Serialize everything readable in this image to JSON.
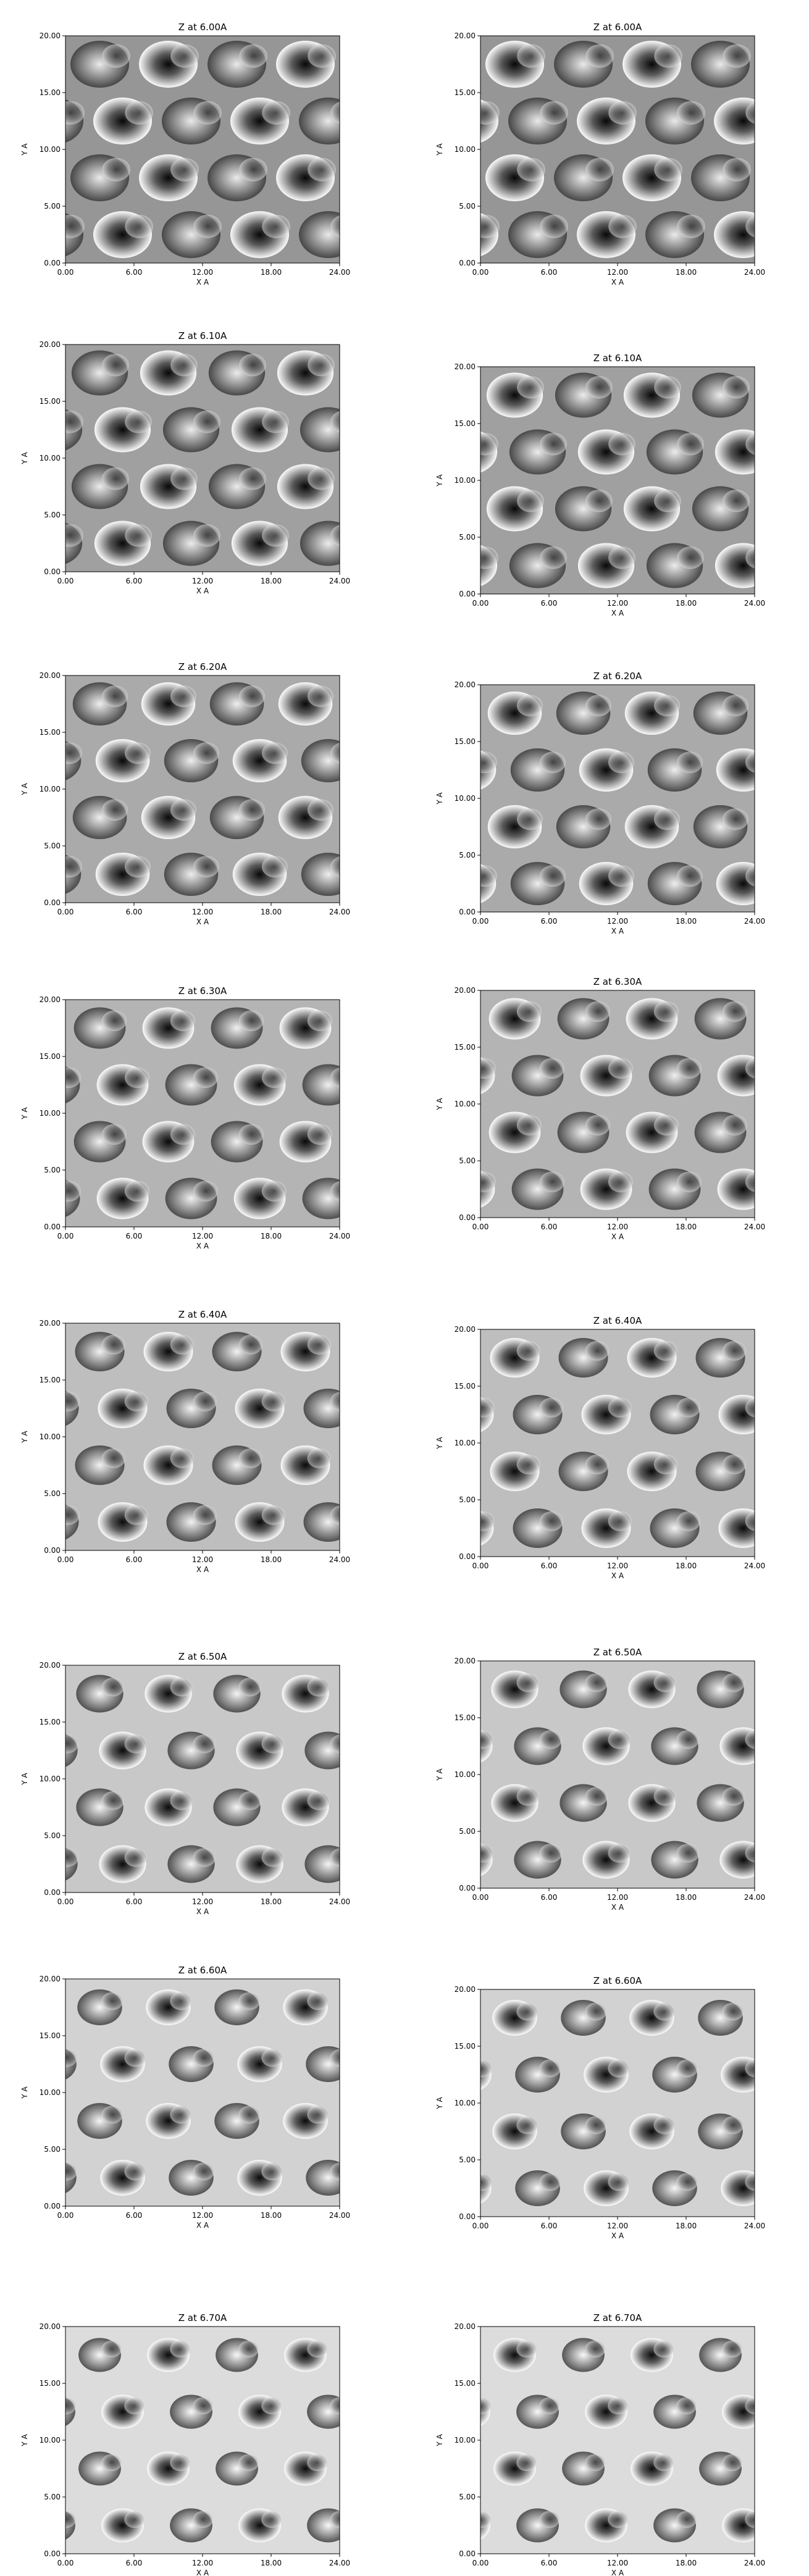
{
  "chart_data": [
    {
      "type": "heatmap",
      "title": "Z at 6.00A",
      "xlabel": "X A",
      "ylabel": "Y A",
      "xlim": [
        0,
        24
      ],
      "ylim": [
        0,
        20
      ],
      "xticks": [
        "0.00",
        "6.00",
        "12.00",
        "18.00",
        "24.00"
      ],
      "yticks": [
        "0.00",
        "5.00",
        "10.00",
        "15.00",
        "20.00"
      ],
      "colormap": "gray"
    },
    {
      "type": "heatmap",
      "title": "Z at 6.00A",
      "xlabel": "X A",
      "ylabel": "Y A",
      "xlim": [
        0,
        24
      ],
      "ylim": [
        0,
        20
      ],
      "xticks": [
        "0.00",
        "6.00",
        "12.00",
        "18.00",
        "24.00"
      ],
      "yticks": [
        "0.00",
        "5.00",
        "10.00",
        "15.00",
        "20.00"
      ],
      "colormap": "gray"
    },
    {
      "type": "heatmap",
      "title": "Z at 6.10A",
      "xlabel": "X A",
      "ylabel": "Y A",
      "xlim": [
        0,
        24
      ],
      "ylim": [
        0,
        20
      ],
      "xticks": [
        "0.00",
        "6.00",
        "12.00",
        "18.00",
        "24.00"
      ],
      "yticks": [
        "0.00",
        "5.00",
        "10.00",
        "15.00",
        "20.00"
      ],
      "colormap": "gray"
    },
    {
      "type": "heatmap",
      "title": "Z at 6.10A",
      "xlabel": "X A",
      "ylabel": "Y A",
      "xlim": [
        0,
        24
      ],
      "ylim": [
        0,
        20
      ],
      "xticks": [
        "0.00",
        "6.00",
        "12.00",
        "18.00",
        "24.00"
      ],
      "yticks": [
        "0.00",
        "5.00",
        "10.00",
        "15.00",
        "20.00"
      ],
      "colormap": "gray"
    },
    {
      "type": "heatmap",
      "title": "Z at 6.20A",
      "xlabel": "X A",
      "ylabel": "Y A",
      "xlim": [
        0,
        24
      ],
      "ylim": [
        0,
        20
      ],
      "xticks": [
        "0.00",
        "6.00",
        "12.00",
        "18.00",
        "24.00"
      ],
      "yticks": [
        "0.00",
        "5.00",
        "10.00",
        "15.00",
        "20.00"
      ],
      "colormap": "gray"
    },
    {
      "type": "heatmap",
      "title": "Z at 6.20A",
      "xlabel": "X A",
      "ylabel": "Y A",
      "xlim": [
        0,
        24
      ],
      "ylim": [
        0,
        20
      ],
      "xticks": [
        "0.00",
        "6.00",
        "12.00",
        "18.00",
        "24.00"
      ],
      "yticks": [
        "0.00",
        "5.00",
        "10.00",
        "15.00",
        "20.00"
      ],
      "colormap": "gray"
    },
    {
      "type": "heatmap",
      "title": "Z at 6.30A",
      "xlabel": "X A",
      "ylabel": "Y A",
      "xlim": [
        0,
        24
      ],
      "ylim": [
        0,
        20
      ],
      "xticks": [
        "0.00",
        "6.00",
        "12.00",
        "18.00",
        "24.00"
      ],
      "yticks": [
        "0.00",
        "5.00",
        "10.00",
        "15.00",
        "20.00"
      ],
      "colormap": "gray"
    },
    {
      "type": "heatmap",
      "title": "Z at 6.30A",
      "xlabel": "X A",
      "ylabel": "Y A",
      "xlim": [
        0,
        24
      ],
      "ylim": [
        0,
        20
      ],
      "xticks": [
        "0.00",
        "6.00",
        "12.00",
        "18.00",
        "24.00"
      ],
      "yticks": [
        "0.00",
        "5.00",
        "10.00",
        "15.00",
        "20.00"
      ],
      "colormap": "gray"
    },
    {
      "type": "heatmap",
      "title": "Z at 6.40A",
      "xlabel": "X A",
      "ylabel": "Y A",
      "xlim": [
        0,
        24
      ],
      "ylim": [
        0,
        20
      ],
      "xticks": [
        "0.00",
        "6.00",
        "12.00",
        "18.00",
        "24.00"
      ],
      "yticks": [
        "0.00",
        "5.00",
        "10.00",
        "15.00",
        "20.00"
      ],
      "colormap": "gray"
    },
    {
      "type": "heatmap",
      "title": "Z at 6.40A",
      "xlabel": "X A",
      "ylabel": "Y A",
      "xlim": [
        0,
        24
      ],
      "ylim": [
        0,
        20
      ],
      "xticks": [
        "0.00",
        "6.00",
        "12.00",
        "18.00",
        "24.00"
      ],
      "yticks": [
        "0.00",
        "5.00",
        "10.00",
        "15.00",
        "20.00"
      ],
      "colormap": "gray"
    },
    {
      "type": "heatmap",
      "title": "Z at 6.50A",
      "xlabel": "X A",
      "ylabel": "Y A",
      "xlim": [
        0,
        24
      ],
      "ylim": [
        0,
        20
      ],
      "xticks": [
        "0.00",
        "6.00",
        "12.00",
        "18.00",
        "24.00"
      ],
      "yticks": [
        "0.00",
        "5.00",
        "10.00",
        "15.00",
        "20.00"
      ],
      "colormap": "gray"
    },
    {
      "type": "heatmap",
      "title": "Z at 6.50A",
      "xlabel": "X A",
      "ylabel": "Y A",
      "xlim": [
        0,
        24
      ],
      "ylim": [
        0,
        20
      ],
      "xticks": [
        "0.00",
        "6.00",
        "12.00",
        "18.00",
        "24.00"
      ],
      "yticks": [
        "0.00",
        "5.00",
        "10.00",
        "15.00",
        "20.00"
      ],
      "colormap": "gray"
    },
    {
      "type": "heatmap",
      "title": "Z at 6.60A",
      "xlabel": "X A",
      "ylabel": "Y A",
      "xlim": [
        0,
        24
      ],
      "ylim": [
        0,
        20
      ],
      "xticks": [
        "0.00",
        "6.00",
        "12.00",
        "18.00",
        "24.00"
      ],
      "yticks": [
        "0.00",
        "5.00",
        "10.00",
        "15.00",
        "20.00"
      ],
      "colormap": "gray"
    },
    {
      "type": "heatmap",
      "title": "Z at 6.60A",
      "xlabel": "X A",
      "ylabel": "Y A",
      "xlim": [
        0,
        24
      ],
      "ylim": [
        0,
        20
      ],
      "xticks": [
        "0.00",
        "6.00",
        "12.00",
        "18.00",
        "24.00"
      ],
      "yticks": [
        "0.00",
        "5.00",
        "10.00",
        "15.00",
        "20.00"
      ],
      "colormap": "gray"
    },
    {
      "type": "heatmap",
      "title": "Z at 6.70A",
      "xlabel": "X A",
      "ylabel": "Y A",
      "xlim": [
        0,
        24
      ],
      "ylim": [
        0,
        20
      ],
      "xticks": [
        "0.00",
        "6.00",
        "12.00",
        "18.00",
        "24.00"
      ],
      "yticks": [
        "0.00",
        "5.00",
        "10.00",
        "15.00",
        "20.00"
      ],
      "colormap": "gray"
    },
    {
      "type": "heatmap",
      "title": "Z at 6.70A",
      "xlabel": "X A",
      "ylabel": "Y A",
      "xlim": [
        0,
        24
      ],
      "ylim": [
        0,
        20
      ],
      "xticks": [
        "0.00",
        "6.00",
        "12.00",
        "18.00",
        "24.00"
      ],
      "yticks": [
        "0.00",
        "5.00",
        "10.00",
        "15.00",
        "20.00"
      ],
      "colormap": "gray"
    }
  ]
}
